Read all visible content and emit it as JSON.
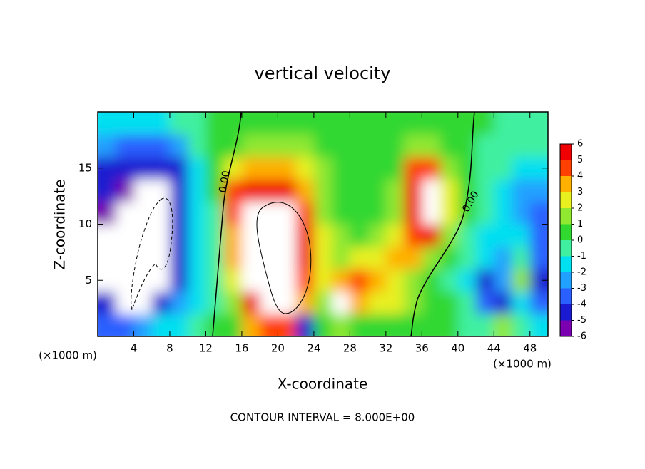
{
  "chart_data": {
    "type": "heatmap",
    "title": "vertical velocity",
    "x_label": "X-coordinate",
    "y_label": "Z-coordinate",
    "x_unit": "(×1000 m)",
    "x_unit_right": "(×1000 m)",
    "footer": "CONTOUR INTERVAL = 8.000E+00",
    "contour_labels": [
      "0.00",
      "0.00"
    ],
    "xlim": [
      0,
      50
    ],
    "ylim": [
      0,
      20
    ],
    "xticks": [
      4,
      8,
      12,
      16,
      20,
      24,
      28,
      32,
      36,
      40,
      44,
      48
    ],
    "yticks": [
      5,
      10,
      15
    ],
    "x": [
      1,
      3,
      5,
      7,
      9,
      11,
      13,
      15,
      17,
      19,
      21,
      23,
      25,
      27,
      29,
      31,
      33,
      35,
      37,
      39,
      41,
      43,
      45,
      47,
      49
    ],
    "y": [
      1,
      3,
      5,
      7,
      9,
      11,
      13,
      15,
      17,
      19
    ],
    "z": [
      [
        -4,
        -4,
        -3,
        -2,
        -2,
        -1,
        0,
        0.5,
        3,
        4,
        4,
        -5,
        0.5,
        1,
        0,
        0.5,
        0,
        0.5,
        0,
        0,
        -1,
        -1,
        1,
        -1,
        -2
      ],
      [
        -5,
        -8,
        -8,
        -5,
        -3,
        -2,
        -1,
        1,
        5,
        8,
        8,
        3,
        1,
        8,
        3,
        2,
        2,
        1,
        0,
        0,
        -1,
        -4,
        -5,
        -2,
        -4
      ],
      [
        -8,
        -8,
        -8,
        -8,
        -5,
        -2,
        -1,
        2,
        6,
        8,
        8,
        4,
        2,
        3,
        4,
        3,
        2,
        1,
        0,
        -1,
        -2,
        -5,
        -3,
        1.5,
        -5
      ],
      [
        -8,
        -8,
        -8,
        -8,
        -5,
        -2,
        -1,
        3,
        7,
        8,
        8,
        5,
        2,
        1,
        2,
        2,
        3,
        3,
        1,
        0,
        -1,
        -2,
        -3,
        -1,
        -4
      ],
      [
        -8,
        -8,
        -8,
        -8,
        -5,
        -2,
        -0.5,
        3,
        7,
        8,
        8,
        5,
        2,
        1,
        0,
        1,
        2,
        4,
        5,
        1,
        -1,
        -2,
        -2,
        -2,
        -4
      ],
      [
        -6,
        -8,
        -8,
        -8,
        -5,
        -2,
        -0.5,
        4,
        6,
        8,
        7,
        4,
        1,
        0,
        0,
        0.5,
        1,
        5,
        8,
        2,
        0,
        -1,
        -2,
        -3,
        -4
      ],
      [
        -5,
        -6,
        -8,
        -8,
        -5,
        -2,
        0,
        4,
        5,
        5,
        5,
        3,
        1,
        0.5,
        0,
        0,
        1,
        5,
        7,
        2,
        0,
        -1,
        -2,
        -3,
        -3
      ],
      [
        -5,
        -5,
        -5,
        -5,
        -5,
        -2,
        0,
        2,
        3,
        3,
        3,
        2,
        1,
        0.5,
        0,
        0,
        0.5,
        4,
        4,
        1,
        0,
        -1,
        -1,
        -2,
        -2
      ],
      [
        -3,
        -4,
        -4,
        -4,
        -3,
        -1,
        0,
        0.5,
        1,
        1,
        1,
        1,
        0.5,
        0,
        0,
        0,
        0,
        1,
        1,
        0.5,
        0,
        -0.5,
        -1,
        -1,
        -1
      ],
      [
        -2,
        -2,
        -2,
        -2,
        -1,
        -0.5,
        0,
        0,
        0.5,
        0.5,
        0.5,
        0,
        0,
        0,
        0,
        0,
        0,
        0,
        0,
        0,
        0,
        0,
        -0.5,
        -0.5,
        -1
      ]
    ],
    "colorbar_ticks": [
      -6,
      -5,
      -4,
      -3,
      -2,
      -1,
      0,
      1,
      2,
      3,
      4,
      5,
      6
    ],
    "colors": [
      "#7a00b0",
      "#1a1ad0",
      "#2a60ff",
      "#20a0ff",
      "#00e0f0",
      "#40f0a0",
      "#30d830",
      "#90e830",
      "#e8f020",
      "#ffb000",
      "#ff4000",
      "#f00000"
    ],
    "out_of_range_color": "#ffffff"
  }
}
